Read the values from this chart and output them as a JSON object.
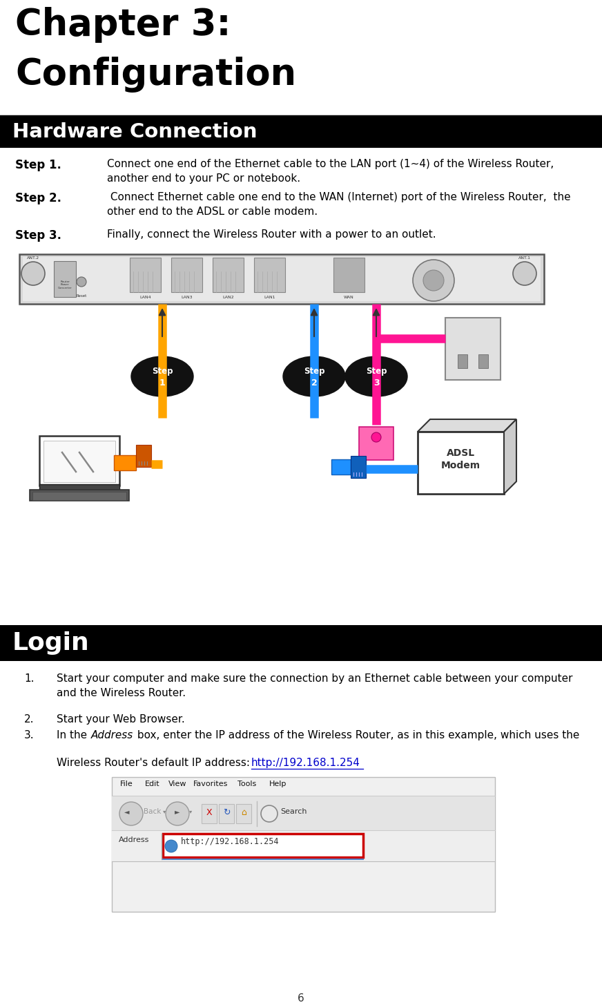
{
  "title_line1": "Chapter 3:",
  "title_line2": "Configuration",
  "section1": "Hardware Connection",
  "section2": "Login",
  "step1_label": "Step 1.",
  "step1_text": "Connect one end of the Ethernet cable to the LAN port (1~4) of the Wireless Router,\nanother end to your PC or notebook.",
  "step2_label": "Step 2.",
  "step2_text": " Connect Ethernet cable one end to the WAN (Internet) port of the Wireless Router,  the\nother end to the ADSL or cable modem.",
  "step3_label": "Step 3.",
  "step3_text": "Finally, connect the Wireless Router with a power to an outlet.",
  "login_item1": "Start your computer and make sure the connection by an Ethernet cable between your computer\nand the Wireless Router.",
  "login_item2": "Start your Web Browser.",
  "login_item3_link": "http://192.168.1.254",
  "page_number": "6",
  "bg_color": "#ffffff",
  "header_bg": "#000000",
  "header_text_color": "#ffffff",
  "title_color": "#000000",
  "body_text_color": "#000000",
  "link_color": "#0000cc"
}
